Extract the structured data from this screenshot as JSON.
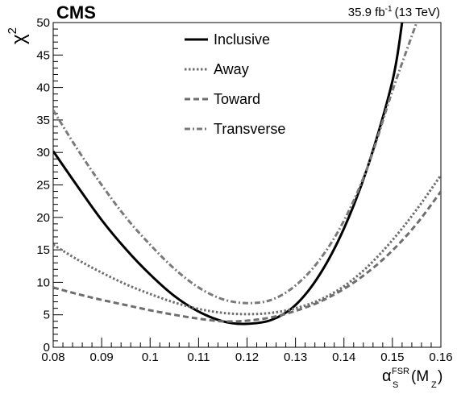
{
  "experiment": "CMS",
  "luminosity": {
    "value": "35.9 fb",
    "exponent": "-1",
    "energy": "(13 TeV)"
  },
  "chart_data": {
    "type": "line",
    "xlabel": {
      "symbol": "α",
      "subscript": "S",
      "superscript": "FSR",
      "argument_open": "(M",
      "argument_subscript": "Z",
      "argument_close": ")"
    },
    "ylabel": {
      "symbol": "χ",
      "superscript": "2"
    },
    "xlim": [
      0.08,
      0.16
    ],
    "ylim": [
      0,
      50
    ],
    "xticks": [
      "0.08",
      "0.09",
      "0.1",
      "0.11",
      "0.12",
      "0.13",
      "0.14",
      "0.15",
      "0.16"
    ],
    "yticks": [
      "0",
      "5",
      "10",
      "15",
      "20",
      "25",
      "30",
      "35",
      "40",
      "45",
      "50"
    ],
    "legend_position": "top-center",
    "grid": false,
    "series": [
      {
        "name": "Inclusive",
        "style": "solid",
        "color": "#000000",
        "x": [
          0.08,
          0.085,
          0.09,
          0.095,
          0.1,
          0.105,
          0.11,
          0.115,
          0.1195,
          0.125,
          0.13,
          0.135,
          0.14,
          0.145,
          0.15,
          0.152
        ],
        "y": [
          30.2,
          24.8,
          19.6,
          15.1,
          11.2,
          7.9,
          5.5,
          4.0,
          3.6,
          4.2,
          6.5,
          11.2,
          18.3,
          28.0,
          41.0,
          50.0
        ]
      },
      {
        "name": "Away",
        "style": "dotted",
        "color": "#6e6e6e",
        "x": [
          0.08,
          0.085,
          0.09,
          0.095,
          0.1,
          0.105,
          0.11,
          0.115,
          0.12,
          0.125,
          0.13,
          0.135,
          0.14,
          0.145,
          0.15,
          0.155,
          0.16
        ],
        "y": [
          15.8,
          13.5,
          11.5,
          9.7,
          8.2,
          6.9,
          5.9,
          5.3,
          5.1,
          5.3,
          6.0,
          7.3,
          9.4,
          12.5,
          16.5,
          21.2,
          26.5
        ]
      },
      {
        "name": "Toward",
        "style": "dashed",
        "color": "#6e6e6e",
        "x": [
          0.08,
          0.085,
          0.09,
          0.095,
          0.1,
          0.105,
          0.11,
          0.115,
          0.12,
          0.125,
          0.13,
          0.135,
          0.14,
          0.145,
          0.15,
          0.155,
          0.16
        ],
        "y": [
          9.2,
          8.2,
          7.3,
          6.5,
          5.7,
          5.0,
          4.4,
          4.0,
          4.1,
          4.6,
          5.6,
          7.0,
          9.0,
          11.6,
          14.9,
          19.0,
          24.0
        ]
      },
      {
        "name": "Transverse",
        "style": "dashdot",
        "color": "#7a7a7a",
        "x": [
          0.08,
          0.085,
          0.09,
          0.095,
          0.1,
          0.105,
          0.11,
          0.115,
          0.12,
          0.125,
          0.13,
          0.135,
          0.14,
          0.145,
          0.15,
          0.155
        ],
        "y": [
          36.5,
          30.5,
          25.0,
          20.0,
          15.8,
          12.1,
          9.2,
          7.4,
          6.8,
          7.3,
          9.5,
          13.5,
          19.5,
          28.0,
          39.5,
          50.0
        ]
      }
    ]
  }
}
